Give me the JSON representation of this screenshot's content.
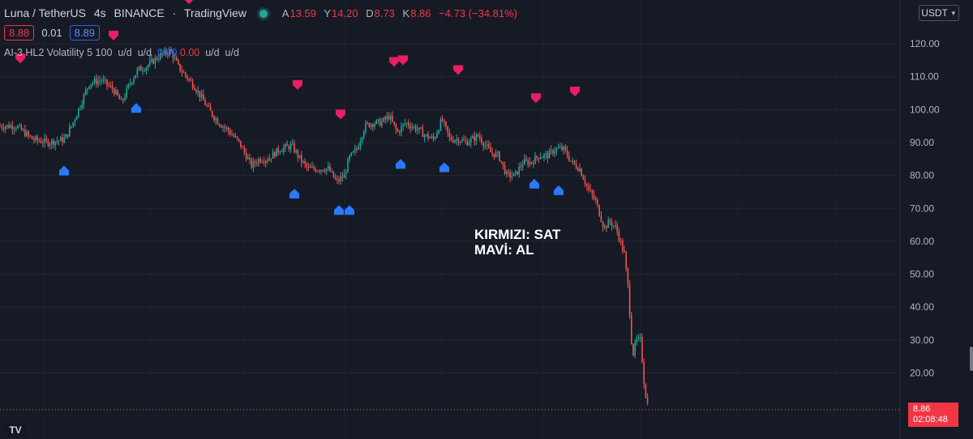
{
  "header": {
    "symbol": "Luna / TetherUS",
    "interval": "4s",
    "exchange": "BINANCE",
    "source": "TradingView",
    "ohlc": {
      "o_label": "A",
      "o_value": "13.59",
      "h_label": "Y",
      "h_value": "14.20",
      "l_label": "D",
      "l_value": "8.73",
      "c_label": "K",
      "c_value": "8.86",
      "change": "−4.73 (−34.81%)"
    }
  },
  "order": {
    "sell_price": "8.88",
    "spread": "0.01",
    "buy_price": "8.89"
  },
  "indicator": {
    "name": "AI-3 HL2 Volatility 5 100",
    "v1": "u/d",
    "v2": "u/d",
    "v3": "0.00",
    "v4": "0.00",
    "v5": "u/d",
    "v6": "u/d"
  },
  "currency": "USDT",
  "annotation": {
    "line1": "KIRMIZI: SAT",
    "line2": "MAVİ: AL"
  },
  "last_price": {
    "value": "8.86",
    "countdown": "02:08:48"
  },
  "colors": {
    "background": "#161a25",
    "up": "#26a69a",
    "down": "#ef5350",
    "sell_marker": "#e91e63",
    "buy_marker": "#2979ff"
  },
  "chart_data": {
    "type": "line",
    "yaxis": {
      "ticks": [
        120,
        110,
        100,
        90,
        80,
        70,
        60,
        50,
        40,
        30,
        20
      ],
      "ylim": [
        9,
        124
      ],
      "side": "right"
    },
    "xlim": [
      0,
      800
    ],
    "series": [
      {
        "x": [
          0,
          20,
          40,
          60,
          80,
          90,
          100,
          110,
          125,
          140,
          150,
          160,
          170,
          180,
          195,
          210,
          220,
          230,
          240,
          250,
          260,
          270,
          280,
          295,
          310,
          320,
          330,
          345,
          360,
          370,
          380,
          395,
          405,
          415,
          425,
          430,
          440,
          450,
          460,
          470,
          480,
          490,
          500,
          515,
          525,
          535,
          545,
          555,
          565,
          575,
          590,
          605,
          615,
          625,
          635,
          645,
          655,
          665,
          675,
          685,
          695,
          705,
          715,
          725,
          735,
          745,
          752,
          760,
          770,
          775,
          780,
          785,
          790,
          795,
          800
        ],
        "values": [
          95,
          95,
          91,
          90,
          91,
          96,
          102,
          108,
          109,
          106,
          102,
          108,
          112,
          113,
          116,
          118,
          113,
          110,
          107,
          103,
          99,
          96,
          94,
          90,
          83,
          85,
          85,
          88,
          89,
          85,
          82,
          82,
          82,
          78,
          80,
          85,
          88,
          95,
          96,
          96,
          98,
          93,
          96,
          94,
          92,
          91,
          97,
          91,
          91,
          90,
          92,
          87,
          86,
          80,
          80,
          84,
          84,
          86,
          86,
          88,
          88,
          84,
          82,
          76,
          72,
          64,
          66,
          64,
          56,
          45,
          25,
          30,
          30,
          15,
          9
        ]
      }
    ],
    "sell_signals": [
      {
        "x": 25,
        "price": 115.5
      },
      {
        "x": 140,
        "price": 122.5
      },
      {
        "x": 233,
        "price": 133.5
      },
      {
        "x": 367,
        "price": 107.5
      },
      {
        "x": 420,
        "price": 98.5
      },
      {
        "x": 486,
        "price": 114.5
      },
      {
        "x": 497,
        "price": 115.0
      },
      {
        "x": 565,
        "price": 112.0
      },
      {
        "x": 661,
        "price": 103.5
      },
      {
        "x": 709,
        "price": 105.5
      }
    ],
    "buy_signals": [
      {
        "x": 79,
        "price": 81.5
      },
      {
        "x": 168,
        "price": 100.5
      },
      {
        "x": 363,
        "price": 74.5
      },
      {
        "x": 418,
        "price": 69.5
      },
      {
        "x": 431,
        "price": 69.5
      },
      {
        "x": 494,
        "price": 83.5
      },
      {
        "x": 548,
        "price": 82.5
      },
      {
        "x": 659,
        "price": 77.5
      },
      {
        "x": 689,
        "price": 75.5
      }
    ],
    "last_price_line": 8.86
  }
}
